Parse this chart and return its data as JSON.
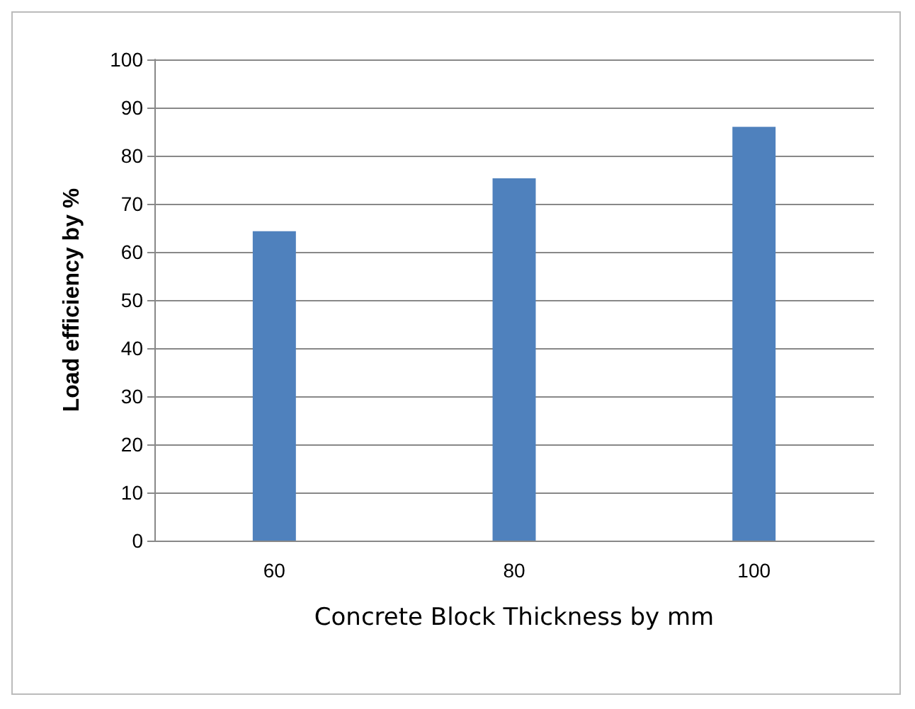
{
  "chart_data": {
    "type": "bar",
    "xlabel": "Concrete Block Thickness by mm",
    "ylabel": "Load efficiency by %",
    "categories": [
      "60",
      "80",
      "100"
    ],
    "values": [
      64.3,
      75.3,
      86
    ],
    "color": "#4f81bd",
    "ylim": [
      0,
      100
    ],
    "yticks": [
      0,
      10,
      20,
      30,
      40,
      50,
      60,
      70,
      80,
      90,
      100
    ],
    "grid": "y"
  }
}
